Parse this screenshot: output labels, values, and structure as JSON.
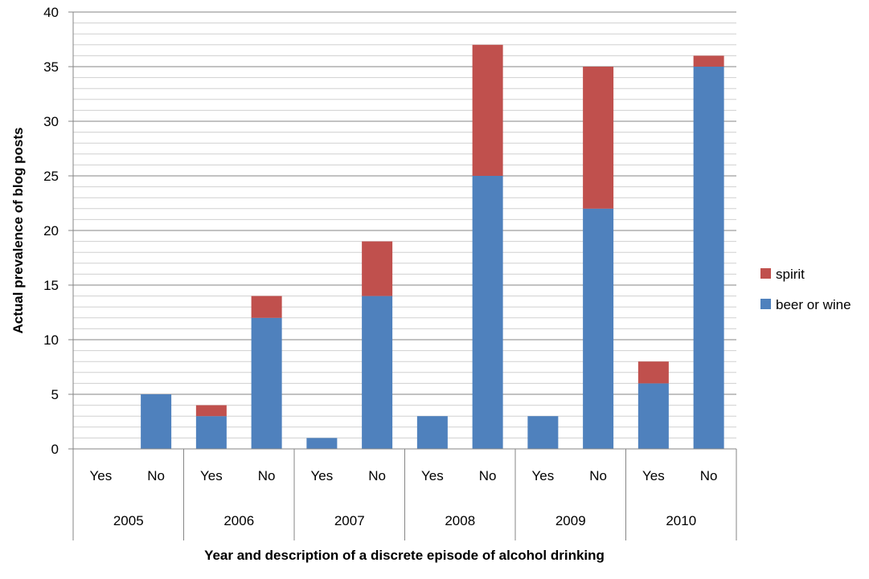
{
  "chart_data": {
    "type": "bar",
    "stacked": true,
    "title": "",
    "xlabel": "Year and description of a discrete episode of alcohol drinking",
    "ylabel": "Actual prevalence of blog posts",
    "ylim": [
      0,
      40
    ],
    "y_major_ticks": [
      0,
      5,
      10,
      15,
      20,
      25,
      30,
      35,
      40
    ],
    "y_minor_step": 1,
    "grid": true,
    "legend_position": "right",
    "groups": [
      {
        "year": "2005",
        "categories": [
          "Yes",
          "No"
        ]
      },
      {
        "year": "2006",
        "categories": [
          "Yes",
          "No"
        ]
      },
      {
        "year": "2007",
        "categories": [
          "Yes",
          "No"
        ]
      },
      {
        "year": "2008",
        "categories": [
          "Yes",
          "No"
        ]
      },
      {
        "year": "2009",
        "categories": [
          "Yes",
          "No"
        ]
      },
      {
        "year": "2010",
        "categories": [
          "Yes",
          "No"
        ]
      }
    ],
    "series": [
      {
        "name": "beer or wine",
        "color": "#4f81bd",
        "values": [
          0,
          5,
          3,
          12,
          1,
          14,
          3,
          25,
          3,
          22,
          6,
          35
        ]
      },
      {
        "name": "spirit",
        "color": "#c0504d",
        "values": [
          0,
          0,
          1,
          2,
          0,
          5,
          0,
          12,
          0,
          13,
          2,
          1
        ]
      }
    ],
    "legend_order": [
      "spirit",
      "beer or wine"
    ]
  }
}
